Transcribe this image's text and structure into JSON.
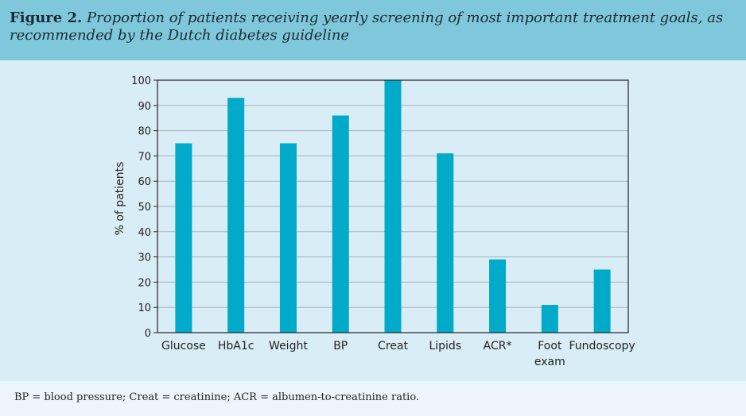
{
  "figure": {
    "label": "Figure 2.",
    "caption": "Proportion of patients receiving yearly screening of most important treatment goals, as recommended by the Dutch diabetes guideline",
    "footnote": "BP = blood pressure; Creat = creatinine; ACR = albumen-to-creatinine ratio."
  },
  "chart_data": {
    "type": "bar",
    "title": "",
    "xlabel": "",
    "ylabel": "% of patients",
    "ylim": [
      0,
      100
    ],
    "yticks": [
      0,
      10,
      20,
      30,
      40,
      50,
      60,
      70,
      80,
      90,
      100
    ],
    "grid": true,
    "bar_color": "#00aac8",
    "categories": [
      "Glucose",
      "HbA1c",
      "Weight",
      "BP",
      "Creat",
      "Lipids",
      "ACR*",
      "Foot exam",
      "Fundoscopy"
    ],
    "category_lines": [
      [
        "Glucose"
      ],
      [
        "HbA1c"
      ],
      [
        "Weight"
      ],
      [
        "BP"
      ],
      [
        "Creat"
      ],
      [
        "Lipids"
      ],
      [
        "ACR*"
      ],
      [
        "Foot",
        "exam"
      ],
      [
        "Fundoscopy"
      ]
    ],
    "values": [
      75,
      93,
      75,
      86,
      100,
      71,
      29,
      11,
      25
    ]
  }
}
